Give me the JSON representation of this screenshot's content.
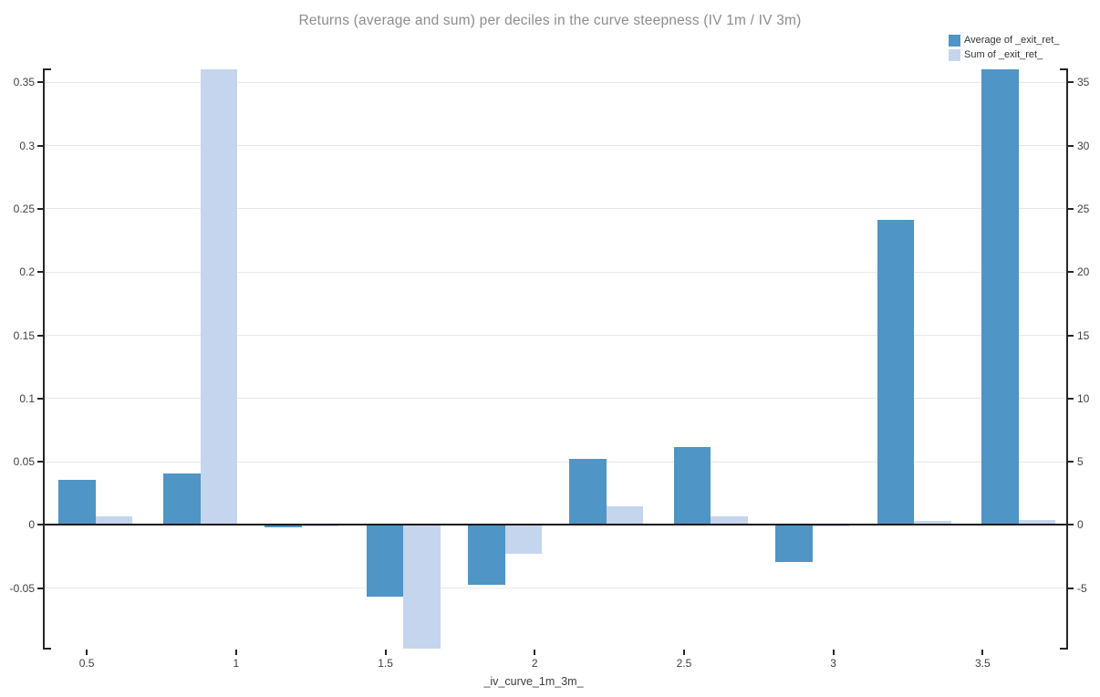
{
  "header": {
    "title": "Returns (average and sum) per deciles in the curve steepness (IV 1m / IV 3m)"
  },
  "legend": {
    "items": [
      {
        "label": "Average of _exit_ret_",
        "color": "#4f95c5"
      },
      {
        "label": "Sum of _exit_ret_",
        "color": "#c5d5ed"
      }
    ]
  },
  "chart_data": {
    "type": "bar",
    "title": "Returns (average and sum) per deciles in the curve steepness (IV 1m / IV 3m)",
    "xlabel": "_iv_curve_1m_3m_",
    "grid": true,
    "legend_position": "top-right",
    "x_range": [
      0.356,
      3.783
    ],
    "x_ticks": {
      "values": [
        0.5,
        1,
        1.5,
        2,
        2.5,
        3,
        3.5
      ],
      "labels": [
        "0.5",
        "1",
        "1.5",
        "2",
        "2.5",
        "3",
        "3.5"
      ]
    },
    "left_axis": {
      "range": [
        -0.0985,
        0.361
      ],
      "tick_values": [
        -0.05,
        0,
        0.05,
        0.1,
        0.15,
        0.2,
        0.25,
        0.3,
        0.35
      ],
      "tick_labels": [
        "-0.05",
        "0",
        "0.05",
        "0.1",
        "0.15",
        "0.2",
        "0.25",
        "0.3",
        "0.35"
      ]
    },
    "right_axis": {
      "range": [
        -9.85,
        36.1
      ],
      "tick_values": [
        -5,
        0,
        5,
        10,
        15,
        20,
        25,
        30,
        35
      ],
      "tick_labels": [
        "-5",
        "0",
        "5",
        "10",
        "15",
        "20",
        "25",
        "30",
        "35"
      ]
    },
    "categories": [
      0.53,
      0.88,
      1.22,
      1.56,
      1.9,
      2.24,
      2.59,
      2.93,
      3.27,
      3.62
    ],
    "series": [
      {
        "name": "Average of _exit_ret_",
        "axis": "left",
        "color": "#4f95c5",
        "values": [
          0.036,
          0.041,
          -0.002,
          -0.057,
          -0.047,
          0.052,
          0.062,
          -0.029,
          0.241,
          0.36
        ]
      },
      {
        "name": "Sum of _exit_ret_",
        "axis": "right",
        "color": "#c5d5ed",
        "values": [
          0.7,
          36.0,
          -0.1,
          -9.8,
          -2.3,
          1.5,
          0.7,
          -0.1,
          0.3,
          0.4
        ]
      }
    ]
  }
}
